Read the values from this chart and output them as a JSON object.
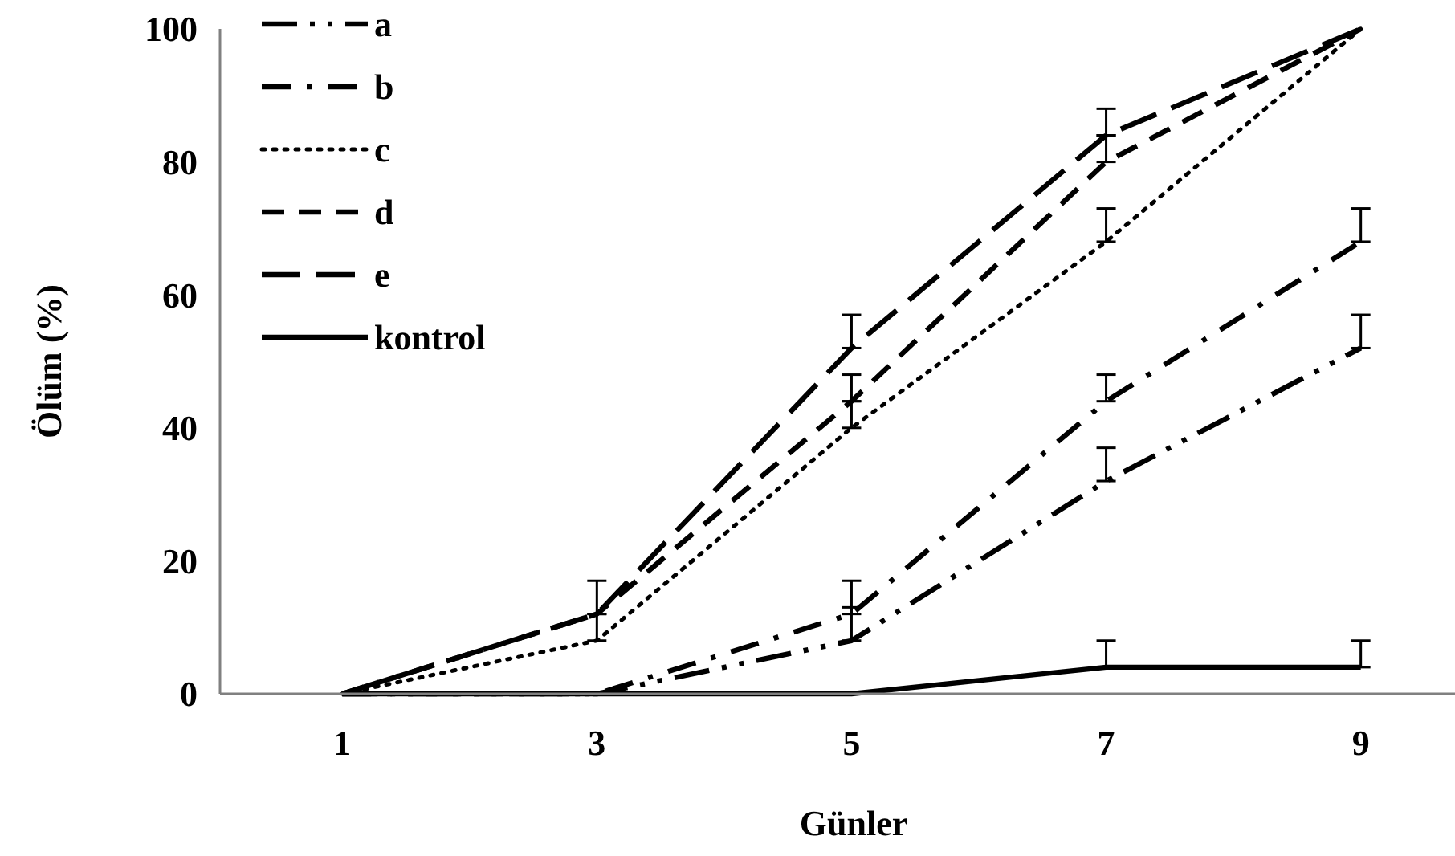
{
  "chart_data": {
    "type": "line",
    "xlabel": "Günler",
    "ylabel": "Ölüm (%)",
    "categories": [
      "1",
      "3",
      "5",
      "7",
      "9"
    ],
    "ylim": [
      0,
      100
    ],
    "yticks": [
      0,
      20,
      40,
      60,
      80,
      100
    ],
    "grid": false,
    "legend": "top left",
    "series": [
      {
        "name": "a",
        "color": "#000000",
        "line_style": "dashed",
        "values": [
          0,
          0,
          8,
          32,
          52
        ],
        "errors": [
          null,
          null,
          [
            8,
            13
          ],
          [
            32,
            37
          ],
          [
            52,
            57
          ]
        ]
      },
      {
        "name": "b",
        "color": "#000000",
        "line_style": "dashed",
        "values": [
          0,
          0,
          12,
          44,
          68
        ],
        "errors": [
          null,
          null,
          [
            12,
            17
          ],
          [
            44,
            48
          ],
          [
            68,
            73
          ]
        ]
      },
      {
        "name": "c",
        "color": "#000000",
        "line_style": "dotted",
        "values": [
          0,
          8,
          40,
          68,
          100
        ],
        "errors": [
          null,
          [
            8,
            12
          ],
          [
            40,
            44
          ],
          [
            68,
            73
          ],
          null
        ]
      },
      {
        "name": "d",
        "color": "#000000",
        "line_style": "dashed",
        "values": [
          0,
          12,
          44,
          80,
          100
        ],
        "errors": [
          null,
          [
            12,
            17
          ],
          [
            44,
            48
          ],
          [
            80,
            84
          ],
          null
        ]
      },
      {
        "name": "e",
        "color": "#000000",
        "line_style": "dashed",
        "values": [
          0,
          12,
          52,
          84,
          100
        ],
        "errors": [
          null,
          null,
          [
            52,
            57
          ],
          [
            84,
            88
          ],
          null
        ]
      },
      {
        "name": "kontrol",
        "color": "#000000",
        "line_style": "solid",
        "values": [
          0,
          0,
          0,
          4,
          4
        ],
        "errors": [
          null,
          null,
          null,
          [
            4,
            8
          ],
          [
            4,
            8
          ]
        ]
      }
    ]
  }
}
